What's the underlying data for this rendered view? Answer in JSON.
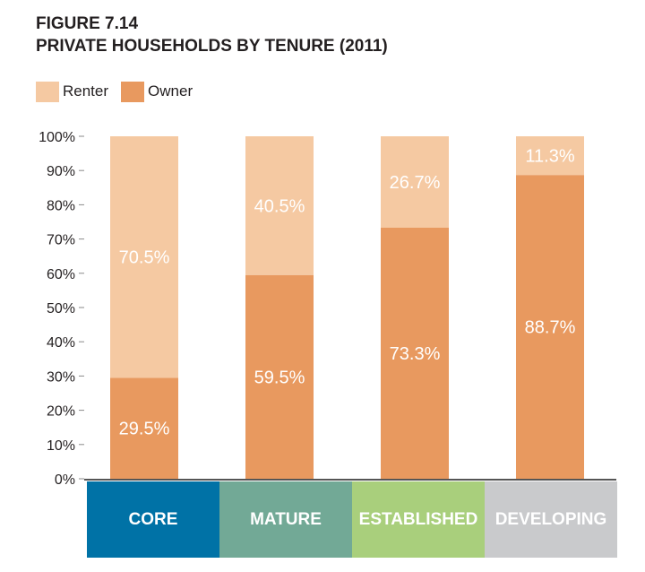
{
  "figure": {
    "number": "FIGURE 7.14",
    "title": "PRIVATE HOUSEHOLDS BY TENURE (2011)"
  },
  "chart_data": {
    "type": "bar",
    "stacked": true,
    "title": "PRIVATE HOUSEHOLDS BY TENURE (2011)",
    "categories": [
      "CORE",
      "MATURE",
      "ESTABLISHED",
      "DEVELOPING"
    ],
    "category_colors": [
      "#0072a6",
      "#72a996",
      "#a9cf7c",
      "#c9cacc"
    ],
    "series": [
      {
        "name": "Owner",
        "values": [
          29.5,
          59.5,
          73.3,
          88.7
        ],
        "labels": [
          "29.5%",
          "59.5%",
          "73.3%",
          "88.7%"
        ],
        "color": "#e8995f"
      },
      {
        "name": "Renter",
        "values": [
          70.5,
          40.5,
          26.7,
          11.3
        ],
        "labels": [
          "70.5%",
          "40.5%",
          "26.7%",
          "11.3%"
        ],
        "color": "#f5c9a2"
      }
    ],
    "legend_order": [
      "Renter",
      "Owner"
    ],
    "legend_position": "top-left",
    "ylim": [
      0,
      100
    ],
    "yticks": [
      0,
      10,
      20,
      30,
      40,
      50,
      60,
      70,
      80,
      90,
      100
    ],
    "ytick_labels": [
      "0%",
      "10%",
      "20%",
      "30%",
      "40%",
      "50%",
      "60%",
      "70%",
      "80%",
      "90%",
      "100%"
    ],
    "grid": false
  }
}
